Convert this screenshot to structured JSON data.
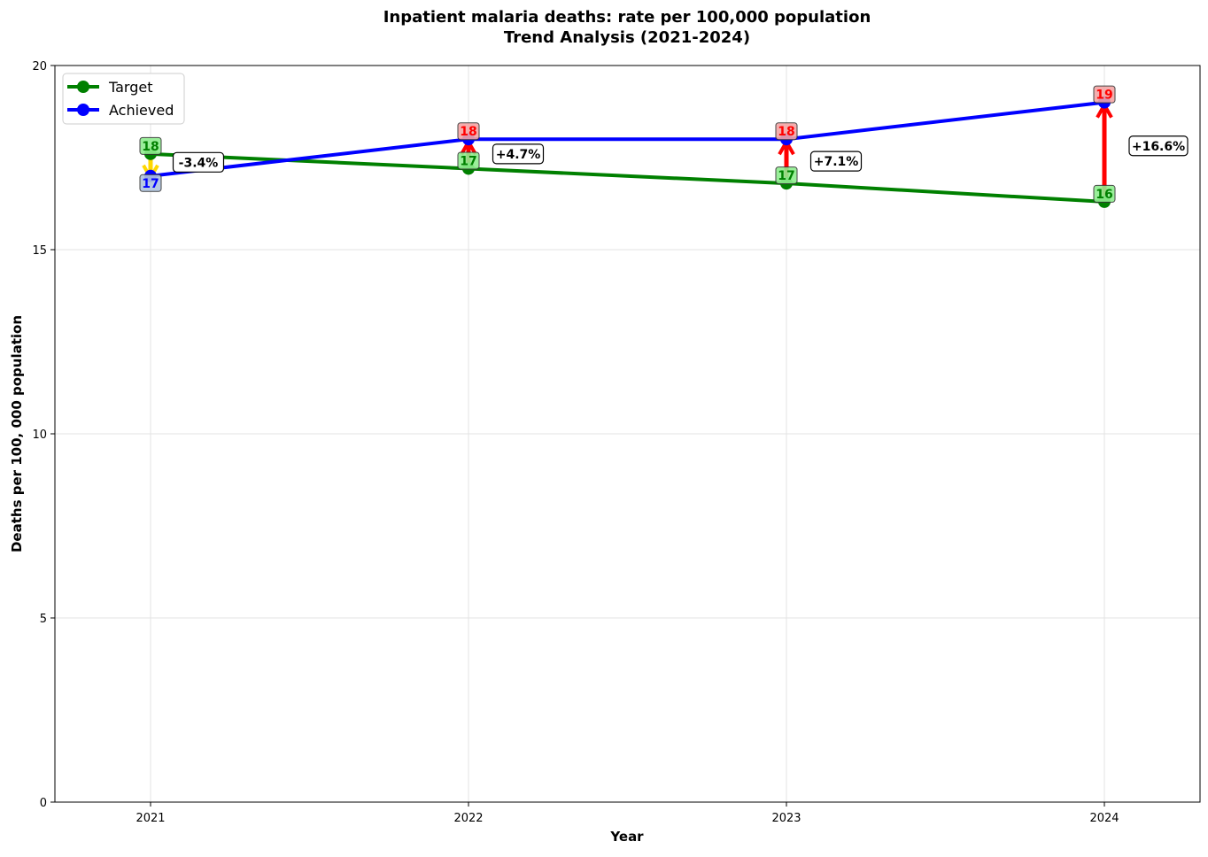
{
  "chart_data": {
    "type": "line",
    "title": "Inpatient malaria deaths: rate per 100,000 population",
    "subtitle": "Trend Analysis (2021-2024)",
    "xlabel": "Year",
    "ylabel": "Deaths per 100, 000 population",
    "categories": [
      "2021",
      "2022",
      "2023",
      "2024"
    ],
    "ylim": [
      0,
      20
    ],
    "yticks": [
      0,
      5,
      10,
      15,
      20
    ],
    "grid": true,
    "legend_position": "top-left",
    "series": [
      {
        "name": "Target",
        "color": "#008000",
        "values": [
          17.6,
          17.2,
          16.8,
          16.3
        ],
        "labels": [
          "18",
          "17",
          "17",
          "16"
        ]
      },
      {
        "name": "Achieved",
        "color": "#0000ff",
        "values": [
          17.0,
          18.0,
          18.0,
          19.0
        ],
        "labels": [
          "17",
          "18",
          "18",
          "19"
        ]
      }
    ],
    "differences": [
      "-3.4%",
      "+4.7%",
      "+7.1%",
      "+16.6%"
    ],
    "colors": {
      "over_target": "#ff0000",
      "under_target": "#ffd700",
      "target_label_bg": "#90ee90",
      "over_label_bg": "#f4a6a6",
      "under_label_bg": "#b0c4de"
    }
  }
}
